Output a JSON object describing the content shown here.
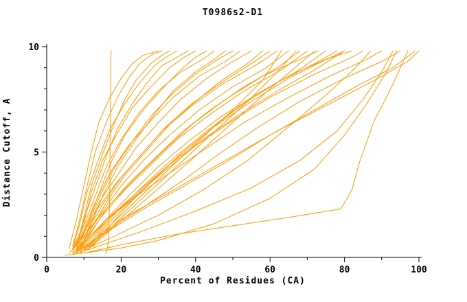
{
  "chart_data": {
    "type": "line",
    "title": "T0986s2-D1",
    "xlabel": "Percent of Residues (CA)",
    "ylabel": "Distance Cutoff, A",
    "xlim": [
      0,
      100
    ],
    "ylim": [
      0,
      10
    ],
    "x_major_ticks": [
      0,
      20,
      40,
      60,
      80,
      100
    ],
    "x_minor_ticks": [
      10,
      30,
      50,
      70,
      90
    ],
    "y_major_ticks": [
      0,
      5,
      10
    ],
    "y_minor_ticks": [
      1,
      2,
      3,
      4,
      6,
      7,
      8,
      9
    ],
    "grid": false,
    "legend": "none",
    "series_color": "#ff9800",
    "axis_color": "#000000",
    "series": [
      [
        [
          16,
          0.2
        ],
        [
          16.5,
          0.6
        ],
        [
          16.6,
          1.2
        ],
        [
          16.8,
          2.2
        ],
        [
          17,
          3.5
        ],
        [
          17,
          5
        ],
        [
          17.1,
          6.5
        ],
        [
          17.2,
          8
        ],
        [
          17.2,
          9
        ],
        [
          17.3,
          9.8
        ]
      ],
      [
        [
          10,
          0.2
        ],
        [
          20,
          0.6
        ],
        [
          35,
          1.1
        ],
        [
          50,
          1.5
        ],
        [
          65,
          1.9
        ],
        [
          79,
          2.3
        ],
        [
          82,
          3.2
        ],
        [
          84,
          4.5
        ],
        [
          86,
          5.5
        ],
        [
          88,
          6.5
        ],
        [
          91,
          7.5
        ],
        [
          94,
          8.6
        ],
        [
          97,
          9.8
        ]
      ],
      [
        [
          7,
          0.15
        ],
        [
          10,
          0.5
        ],
        [
          14,
          1
        ],
        [
          20,
          1.8
        ],
        [
          28,
          2.6
        ],
        [
          38,
          3.6
        ],
        [
          50,
          4.8
        ],
        [
          62,
          6
        ],
        [
          75,
          7.2
        ],
        [
          88,
          8.4
        ],
        [
          97,
          9.3
        ],
        [
          100,
          9.8
        ]
      ],
      [
        [
          8,
          0.2
        ],
        [
          12,
          0.7
        ],
        [
          18,
          1.4
        ],
        [
          26,
          2.3
        ],
        [
          36,
          3.3
        ],
        [
          48,
          4.5
        ],
        [
          60,
          5.8
        ],
        [
          72,
          7
        ],
        [
          84,
          8.2
        ],
        [
          93,
          9
        ],
        [
          99,
          9.8
        ]
      ],
      [
        [
          9,
          0.2
        ],
        [
          13,
          0.8
        ],
        [
          19,
          1.6
        ],
        [
          27,
          2.5
        ],
        [
          37,
          3.7
        ],
        [
          47,
          5
        ],
        [
          57,
          6.2
        ],
        [
          68,
          7.4
        ],
        [
          80,
          8.5
        ],
        [
          90,
          9.3
        ],
        [
          95,
          9.8
        ]
      ],
      [
        [
          8,
          0.3
        ],
        [
          12,
          1
        ],
        [
          17,
          1.9
        ],
        [
          24,
          2.9
        ],
        [
          33,
          4
        ],
        [
          43,
          5.2
        ],
        [
          53,
          6.4
        ],
        [
          64,
          7.5
        ],
        [
          76,
          8.6
        ],
        [
          86,
          9.4
        ],
        [
          90,
          9.8
        ]
      ],
      [
        [
          7,
          0.2
        ],
        [
          11,
          0.9
        ],
        [
          16,
          1.8
        ],
        [
          23,
          2.8
        ],
        [
          31,
          4
        ],
        [
          40,
          5.3
        ],
        [
          50,
          6.5
        ],
        [
          60,
          7.6
        ],
        [
          72,
          8.7
        ],
        [
          82,
          9.5
        ],
        [
          85,
          9.8
        ]
      ],
      [
        [
          9,
          0.3
        ],
        [
          13,
          1.1
        ],
        [
          18,
          2.1
        ],
        [
          25,
          3.2
        ],
        [
          33,
          4.4
        ],
        [
          42,
          5.6
        ],
        [
          52,
          6.8
        ],
        [
          62,
          7.9
        ],
        [
          72,
          8.9
        ],
        [
          80,
          9.8
        ]
      ],
      [
        [
          8,
          0.25
        ],
        [
          12,
          1
        ],
        [
          17,
          2
        ],
        [
          23,
          3.1
        ],
        [
          30,
          4.3
        ],
        [
          38,
          5.5
        ],
        [
          47,
          6.7
        ],
        [
          57,
          7.8
        ],
        [
          67,
          8.8
        ],
        [
          75,
          9.8
        ]
      ],
      [
        [
          7,
          0.2
        ],
        [
          11,
          1
        ],
        [
          15,
          2
        ],
        [
          21,
          3.2
        ],
        [
          28,
          4.4
        ],
        [
          35,
          5.6
        ],
        [
          44,
          6.8
        ],
        [
          53,
          7.9
        ],
        [
          63,
          8.9
        ],
        [
          70,
          9.8
        ]
      ],
      [
        [
          9,
          0.3
        ],
        [
          12,
          1.2
        ],
        [
          16,
          2.3
        ],
        [
          22,
          3.5
        ],
        [
          29,
          4.7
        ],
        [
          36,
          5.9
        ],
        [
          44,
          7
        ],
        [
          53,
          8.1
        ],
        [
          62,
          9
        ],
        [
          68,
          9.8
        ]
      ],
      [
        [
          8,
          0.2
        ],
        [
          11,
          1.1
        ],
        [
          15,
          2.2
        ],
        [
          20,
          3.4
        ],
        [
          26,
          4.6
        ],
        [
          33,
          5.8
        ],
        [
          41,
          7
        ],
        [
          50,
          8.1
        ],
        [
          59,
          9
        ],
        [
          65,
          9.8
        ]
      ],
      [
        [
          7,
          0.3
        ],
        [
          10,
          1.2
        ],
        [
          14,
          2.4
        ],
        [
          19,
          3.6
        ],
        [
          25,
          4.8
        ],
        [
          31,
          6
        ],
        [
          39,
          7.2
        ],
        [
          47,
          8.2
        ],
        [
          56,
          9.1
        ],
        [
          62,
          9.8
        ]
      ],
      [
        [
          8,
          0.3
        ],
        [
          11,
          1.3
        ],
        [
          15,
          2.5
        ],
        [
          20,
          3.8
        ],
        [
          26,
          5
        ],
        [
          32,
          6.2
        ],
        [
          39,
          7.3
        ],
        [
          47,
          8.3
        ],
        [
          55,
          9.2
        ],
        [
          60,
          9.8
        ]
      ],
      [
        [
          9,
          0.4
        ],
        [
          12,
          1.4
        ],
        [
          16,
          2.6
        ],
        [
          21,
          3.9
        ],
        [
          27,
          5.1
        ],
        [
          33,
          6.3
        ],
        [
          40,
          7.4
        ],
        [
          47,
          8.4
        ],
        [
          54,
          9.2
        ],
        [
          58,
          9.8
        ]
      ],
      [
        [
          8,
          0.3
        ],
        [
          11,
          1.3
        ],
        [
          14,
          2.6
        ],
        [
          19,
          3.9
        ],
        [
          24,
          5.2
        ],
        [
          30,
          6.4
        ],
        [
          36,
          7.5
        ],
        [
          43,
          8.5
        ],
        [
          50,
          9.3
        ],
        [
          55,
          9.8
        ]
      ],
      [
        [
          7,
          0.3
        ],
        [
          10,
          1.3
        ],
        [
          13,
          2.6
        ],
        [
          17,
          4
        ],
        [
          22,
          5.3
        ],
        [
          28,
          6.5
        ],
        [
          34,
          7.6
        ],
        [
          41,
          8.6
        ],
        [
          48,
          9.3
        ],
        [
          52,
          9.8
        ]
      ],
      [
        [
          8,
          0.4
        ],
        [
          11,
          1.5
        ],
        [
          14,
          2.8
        ],
        [
          18,
          4.2
        ],
        [
          23,
          5.5
        ],
        [
          28,
          6.7
        ],
        [
          34,
          7.8
        ],
        [
          40,
          8.7
        ],
        [
          46,
          9.4
        ],
        [
          50,
          9.8
        ]
      ],
      [
        [
          9,
          0.4
        ],
        [
          12,
          1.6
        ],
        [
          15,
          2.9
        ],
        [
          19,
          4.3
        ],
        [
          24,
          5.6
        ],
        [
          29,
          6.8
        ],
        [
          34,
          7.9
        ],
        [
          40,
          8.8
        ],
        [
          45,
          9.4
        ],
        [
          48,
          9.8
        ]
      ],
      [
        [
          7,
          0.3
        ],
        [
          10,
          1.5
        ],
        [
          13,
          2.9
        ],
        [
          16,
          4.3
        ],
        [
          20,
          5.6
        ],
        [
          25,
          6.9
        ],
        [
          30,
          7.9
        ],
        [
          36,
          8.8
        ],
        [
          42,
          9.4
        ],
        [
          45,
          9.8
        ]
      ],
      [
        [
          8,
          0.4
        ],
        [
          11,
          1.6
        ],
        [
          14,
          3
        ],
        [
          17,
          4.4
        ],
        [
          21,
          5.8
        ],
        [
          26,
          7
        ],
        [
          31,
          8
        ],
        [
          36,
          8.9
        ],
        [
          40,
          9.5
        ],
        [
          43,
          9.8
        ]
      ],
      [
        [
          7,
          0.4
        ],
        [
          10,
          1.6
        ],
        [
          12,
          3.1
        ],
        [
          15,
          4.6
        ],
        [
          19,
          5.9
        ],
        [
          23,
          7.1
        ],
        [
          28,
          8.1
        ],
        [
          33,
          9
        ],
        [
          37,
          9.5
        ],
        [
          40,
          9.8
        ]
      ],
      [
        [
          8,
          0.5
        ],
        [
          10,
          1.8
        ],
        [
          13,
          3.3
        ],
        [
          16,
          4.8
        ],
        [
          19,
          6.1
        ],
        [
          23,
          7.3
        ],
        [
          27,
          8.3
        ],
        [
          31,
          9.1
        ],
        [
          35,
          9.5
        ],
        [
          38,
          9.8
        ]
      ],
      [
        [
          7,
          0.4
        ],
        [
          9,
          1.7
        ],
        [
          11,
          3.2
        ],
        [
          14,
          4.7
        ],
        [
          17,
          6.1
        ],
        [
          21,
          7.3
        ],
        [
          25,
          8.3
        ],
        [
          29,
          9.1
        ],
        [
          32,
          9.5
        ],
        [
          35,
          9.8
        ]
      ],
      [
        [
          8,
          0.5
        ],
        [
          10,
          1.9
        ],
        [
          12,
          3.4
        ],
        [
          15,
          4.9
        ],
        [
          18,
          6.3
        ],
        [
          21,
          7.5
        ],
        [
          24,
          8.4
        ],
        [
          28,
          9.2
        ],
        [
          31,
          9.6
        ],
        [
          33,
          9.8
        ]
      ],
      [
        [
          7,
          0.5
        ],
        [
          9,
          1.9
        ],
        [
          11,
          3.5
        ],
        [
          13,
          5
        ],
        [
          16,
          6.4
        ],
        [
          19,
          7.6
        ],
        [
          22,
          8.5
        ],
        [
          25,
          9.2
        ],
        [
          28,
          9.6
        ],
        [
          31,
          9.8
        ]
      ],
      [
        [
          6,
          0.4
        ],
        [
          8,
          1.8
        ],
        [
          10,
          3.4
        ],
        [
          12,
          5
        ],
        [
          14,
          6.4
        ],
        [
          17,
          7.6
        ],
        [
          20,
          8.5
        ],
        [
          23,
          9.2
        ],
        [
          26,
          9.6
        ],
        [
          30,
          9.8
        ]
      ],
      [
        [
          10,
          0.4
        ],
        [
          20,
          2
        ],
        [
          30,
          3.7
        ],
        [
          40,
          5.4
        ],
        [
          50,
          7
        ],
        [
          58,
          8.4
        ],
        [
          63,
          9.8
        ]
      ],
      [
        [
          11,
          0.4
        ],
        [
          22,
          2.2
        ],
        [
          33,
          4
        ],
        [
          44,
          5.8
        ],
        [
          54,
          7.4
        ],
        [
          62,
          8.8
        ],
        [
          67,
          9.8
        ]
      ],
      [
        [
          12,
          0.5
        ],
        [
          25,
          2.5
        ],
        [
          38,
          4.5
        ],
        [
          50,
          6.4
        ],
        [
          60,
          8
        ],
        [
          68,
          9.2
        ],
        [
          72,
          9.8
        ]
      ],
      [
        [
          10,
          0.3
        ],
        [
          25,
          1.2
        ],
        [
          40,
          2.2
        ],
        [
          55,
          3.3
        ],
        [
          68,
          4.6
        ],
        [
          78,
          6
        ],
        [
          85,
          7.5
        ],
        [
          90,
          8.8
        ],
        [
          93,
          9.8
        ]
      ],
      [
        [
          9,
          0.25
        ],
        [
          18,
          1
        ],
        [
          30,
          2
        ],
        [
          42,
          3.2
        ],
        [
          54,
          4.6
        ],
        [
          65,
          6.2
        ],
        [
          75,
          7.7
        ],
        [
          83,
          9
        ],
        [
          87,
          9.8
        ]
      ],
      [
        [
          10,
          0.3
        ],
        [
          14,
          1.2
        ],
        [
          19,
          2.2
        ],
        [
          26,
          3.4
        ],
        [
          34,
          4.7
        ],
        [
          43,
          6
        ],
        [
          52,
          7.2
        ],
        [
          62,
          8.3
        ],
        [
          72,
          9.2
        ],
        [
          78,
          9.8
        ]
      ],
      [
        [
          11,
          0.4
        ],
        [
          15,
          1.3
        ],
        [
          21,
          2.4
        ],
        [
          28,
          3.6
        ],
        [
          36,
          4.9
        ],
        [
          45,
          6.2
        ],
        [
          55,
          7.4
        ],
        [
          65,
          8.5
        ],
        [
          74,
          9.3
        ],
        [
          80,
          9.8
        ]
      ],
      [
        [
          6,
          0.2
        ],
        [
          9,
          0.8
        ],
        [
          13,
          1.7
        ],
        [
          18,
          2.7
        ],
        [
          24,
          3.8
        ],
        [
          31,
          5
        ],
        [
          39,
          6.3
        ],
        [
          48,
          7.5
        ],
        [
          58,
          8.6
        ],
        [
          68,
          9.4
        ],
        [
          73,
          9.8
        ]
      ],
      [
        [
          12,
          0.5
        ],
        [
          17,
          1.5
        ],
        [
          23,
          2.7
        ],
        [
          30,
          3.9
        ],
        [
          38,
          5.2
        ],
        [
          47,
          6.5
        ],
        [
          56,
          7.7
        ],
        [
          66,
          8.7
        ],
        [
          75,
          9.4
        ],
        [
          82,
          9.8
        ]
      ],
      [
        [
          5,
          0.1
        ],
        [
          12,
          0.25
        ],
        [
          20,
          0.45
        ],
        [
          30,
          0.8
        ],
        [
          45,
          1.6
        ],
        [
          60,
          2.8
        ],
        [
          72,
          4.2
        ],
        [
          80,
          5.8
        ],
        [
          86,
          7.3
        ],
        [
          91,
          8.7
        ],
        [
          94,
          9.8
        ]
      ]
    ]
  }
}
